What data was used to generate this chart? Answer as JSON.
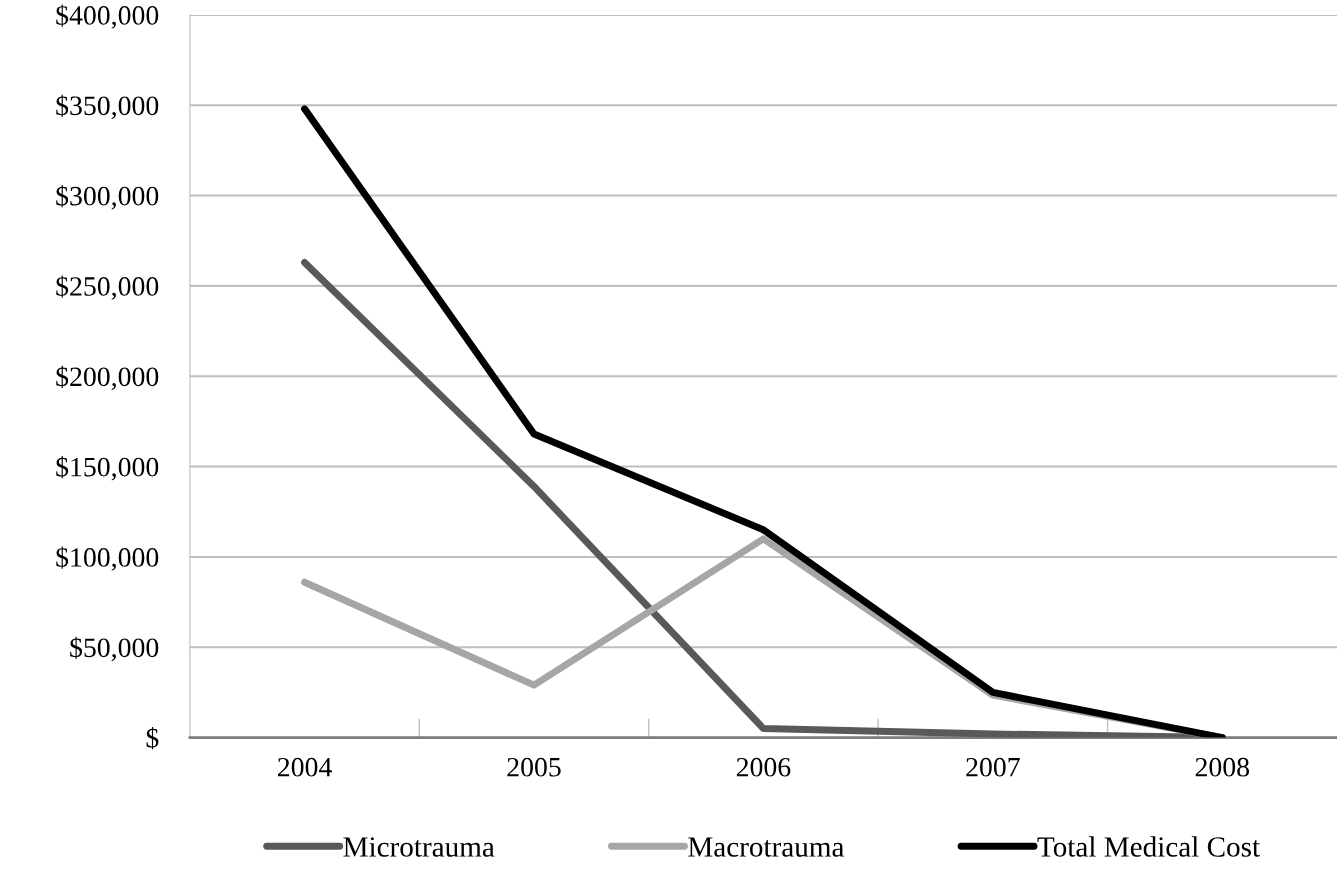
{
  "chart_data": {
    "type": "line",
    "categories": [
      "2004",
      "2005",
      "2006",
      "2007",
      "2008"
    ],
    "series": [
      {
        "name": "Microtrauma",
        "color": "#595959",
        "values": [
          263000,
          139000,
          5000,
          2000,
          0
        ]
      },
      {
        "name": "Macrotrauma",
        "color": "#a6a6a6",
        "values": [
          86000,
          29000,
          110000,
          23500,
          0
        ]
      },
      {
        "name": "Total Medical Cost",
        "color": "#000000",
        "values": [
          348000,
          168000,
          115000,
          25000,
          0
        ]
      }
    ],
    "ylim": [
      0,
      400000
    ],
    "yticks": [
      {
        "value": 0,
        "label": "$"
      },
      {
        "value": 50000,
        "label": "$50,000"
      },
      {
        "value": 100000,
        "label": "$100,000"
      },
      {
        "value": 150000,
        "label": "$150,000"
      },
      {
        "value": 200000,
        "label": "$200,000"
      },
      {
        "value": 250000,
        "label": "$250,000"
      },
      {
        "value": 300000,
        "label": "$300,000"
      },
      {
        "value": 350000,
        "label": "$350,000"
      },
      {
        "value": 400000,
        "label": "$400,000"
      }
    ],
    "grid": "y",
    "legend": "bottom",
    "marker": "none",
    "line_style": "solid"
  }
}
